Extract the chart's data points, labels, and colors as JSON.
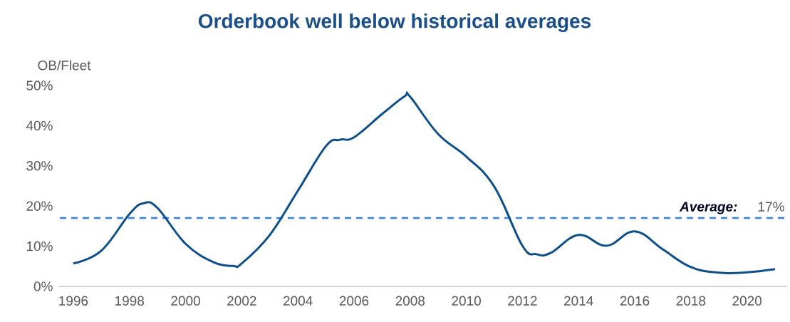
{
  "chart_data": {
    "type": "line",
    "title": "Orderbook well below historical averages",
    "ylabel": "OB/Fleet",
    "x": [
      1996,
      1997,
      1998,
      1998.5,
      1999,
      2000,
      2001,
      2001.7,
      2002,
      2003,
      2004,
      2005,
      2005.5,
      2006,
      2007,
      2007.8,
      2008,
      2009,
      2010,
      2011,
      2012,
      2012.5,
      2013,
      2014,
      2015,
      2016,
      2017,
      2018,
      2019,
      2020,
      2021
    ],
    "values": [
      5.7,
      8.9,
      18,
      20.7,
      19.5,
      10.6,
      6,
      5.1,
      5.7,
      12.8,
      23.8,
      34.9,
      36.5,
      37.1,
      42.9,
      47.3,
      47.2,
      37.9,
      32.3,
      24.8,
      10.1,
      8,
      8.3,
      12.8,
      10.1,
      13.7,
      9.2,
      4.8,
      3.4,
      3.5,
      4.3
    ],
    "color": "#0d4f8b",
    "line_style": "solid",
    "marker": "none",
    "grid": false,
    "xlim": [
      1995.47,
      2021.43
    ],
    "xticks": [
      1996,
      1998,
      2000,
      2002,
      2004,
      2006,
      2008,
      2010,
      2012,
      2014,
      2016,
      2018,
      2020
    ],
    "ylim": [
      0,
      50
    ],
    "yticks": [
      {
        "value": 0,
        "label": "0%"
      },
      {
        "value": 10,
        "label": "10%"
      },
      {
        "value": 20,
        "label": "20%"
      },
      {
        "value": 30,
        "label": "30%"
      },
      {
        "value": 40,
        "label": "40%"
      },
      {
        "value": 50,
        "label": "50%"
      }
    ],
    "ref_lines": [
      {
        "axis": "y",
        "value": 17,
        "label": "Average:",
        "color": "#2f80ff",
        "line_style": "dashed"
      }
    ],
    "annotations": [
      "17%"
    ]
  }
}
